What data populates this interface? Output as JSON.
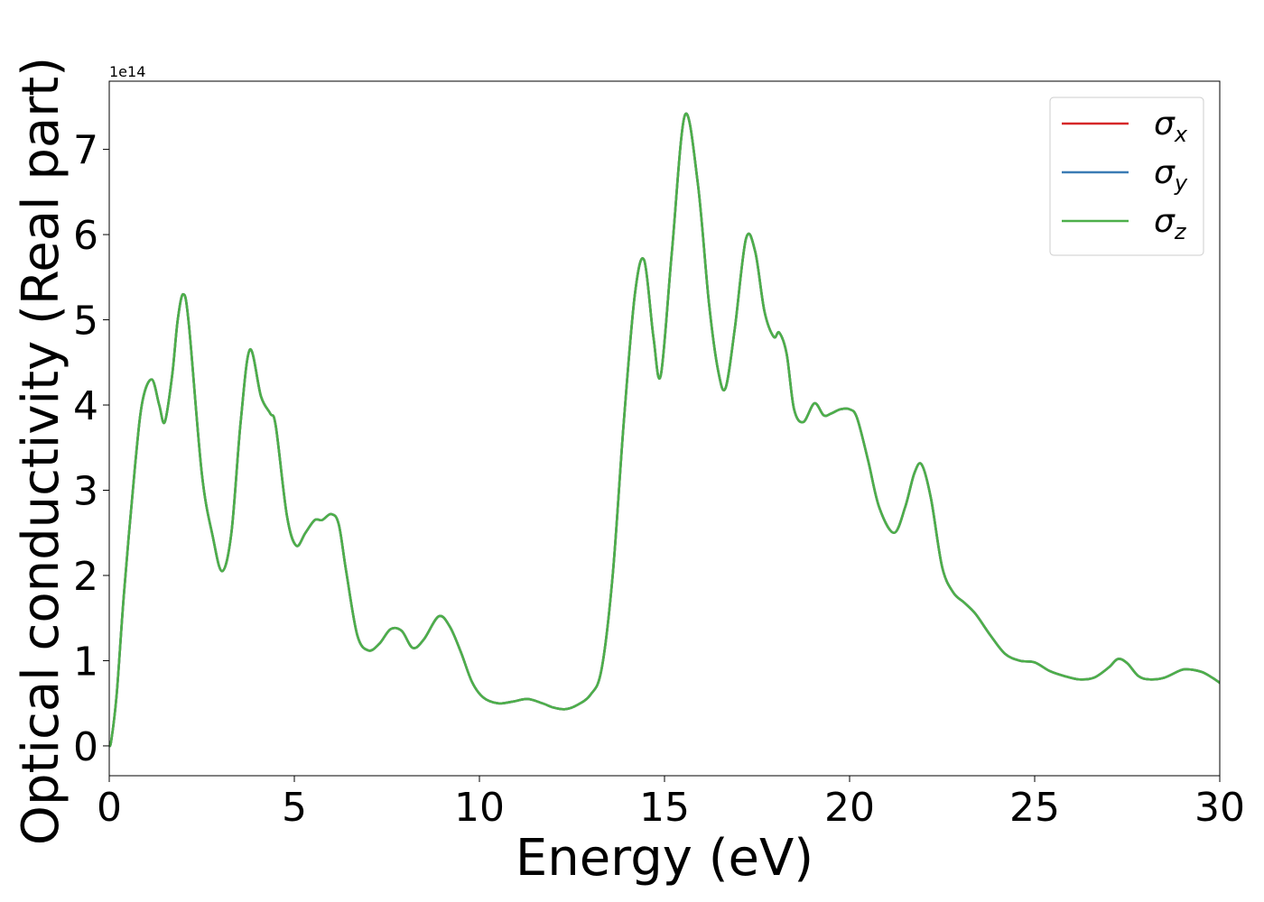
{
  "chart_data": {
    "type": "line",
    "xlabel": "Energy (eV)",
    "ylabel": "Optical conductivity (Real part)",
    "y_offset_text": "1e14",
    "xlim": [
      0,
      30
    ],
    "ylim": [
      -0.35,
      7.8
    ],
    "xticks": [
      0,
      5,
      10,
      15,
      20,
      25,
      30
    ],
    "xtick_labels": [
      "0",
      "5",
      "10",
      "15",
      "20",
      "25",
      "30"
    ],
    "yticks": [
      0,
      1,
      2,
      3,
      4,
      5,
      6,
      7
    ],
    "ytick_labels": [
      "0",
      "1",
      "2",
      "3",
      "4",
      "5",
      "6",
      "7"
    ],
    "grid": false,
    "legend_position": "top-right",
    "x": [
      0,
      0.05,
      0.2,
      0.4,
      0.7,
      0.9,
      1.15,
      1.35,
      1.5,
      1.7,
      1.85,
      2.0,
      2.15,
      2.5,
      2.8,
      3.05,
      3.3,
      3.55,
      3.8,
      4.1,
      4.35,
      4.5,
      4.8,
      5.05,
      5.3,
      5.55,
      5.75,
      6.0,
      6.2,
      6.4,
      6.7,
      7.0,
      7.3,
      7.6,
      7.9,
      8.2,
      8.5,
      8.9,
      9.2,
      9.5,
      9.8,
      10.1,
      10.5,
      10.9,
      11.3,
      11.7,
      12.0,
      12.3,
      12.6,
      13.0,
      13.3,
      13.6,
      13.9,
      14.2,
      14.45,
      14.7,
      14.9,
      15.2,
      15.55,
      15.9,
      16.2,
      16.45,
      16.65,
      16.9,
      17.2,
      17.45,
      17.7,
      17.95,
      18.1,
      18.3,
      18.5,
      18.75,
      19.05,
      19.3,
      19.5,
      19.75,
      20.0,
      20.2,
      20.5,
      20.8,
      21.2,
      21.5,
      21.75,
      21.95,
      22.2,
      22.5,
      22.8,
      23.1,
      23.4,
      23.8,
      24.2,
      24.6,
      25.0,
      25.4,
      25.8,
      26.2,
      26.6,
      27.0,
      27.25,
      27.5,
      27.8,
      28.1,
      28.5,
      28.9,
      29.1,
      29.5,
      29.8,
      30.0
    ],
    "series": [
      {
        "name": "σx",
        "color": "#d62728",
        "values": [
          0.02,
          0.05,
          0.6,
          1.8,
          3.3,
          4.05,
          4.3,
          4.0,
          3.8,
          4.35,
          5.0,
          5.3,
          4.95,
          3.2,
          2.45,
          2.05,
          2.5,
          3.8,
          4.65,
          4.1,
          3.9,
          3.75,
          2.7,
          2.35,
          2.5,
          2.65,
          2.65,
          2.72,
          2.6,
          2.05,
          1.3,
          1.12,
          1.2,
          1.37,
          1.35,
          1.15,
          1.25,
          1.52,
          1.4,
          1.1,
          0.75,
          0.57,
          0.5,
          0.52,
          0.55,
          0.5,
          0.45,
          0.43,
          0.47,
          0.6,
          0.9,
          2.0,
          3.8,
          5.3,
          5.7,
          4.8,
          4.35,
          5.8,
          7.4,
          6.6,
          5.2,
          4.4,
          4.2,
          4.9,
          5.95,
          5.8,
          5.1,
          4.8,
          4.85,
          4.6,
          3.95,
          3.8,
          4.02,
          3.88,
          3.9,
          3.95,
          3.95,
          3.85,
          3.35,
          2.8,
          2.5,
          2.8,
          3.2,
          3.3,
          2.9,
          2.1,
          1.8,
          1.68,
          1.55,
          1.3,
          1.08,
          1.0,
          0.98,
          0.88,
          0.82,
          0.78,
          0.8,
          0.92,
          1.02,
          0.97,
          0.82,
          0.78,
          0.8,
          0.88,
          0.9,
          0.87,
          0.8,
          0.74
        ]
      },
      {
        "name": "σy",
        "color": "#3b7cb4",
        "values": [
          0.02,
          0.05,
          0.6,
          1.8,
          3.3,
          4.05,
          4.3,
          4.0,
          3.8,
          4.35,
          5.0,
          5.3,
          4.95,
          3.2,
          2.45,
          2.05,
          2.5,
          3.8,
          4.65,
          4.1,
          3.9,
          3.75,
          2.7,
          2.35,
          2.5,
          2.65,
          2.65,
          2.72,
          2.6,
          2.05,
          1.3,
          1.12,
          1.2,
          1.37,
          1.35,
          1.15,
          1.25,
          1.52,
          1.4,
          1.1,
          0.75,
          0.57,
          0.5,
          0.52,
          0.55,
          0.5,
          0.45,
          0.43,
          0.47,
          0.6,
          0.9,
          2.0,
          3.8,
          5.3,
          5.7,
          4.8,
          4.35,
          5.8,
          7.4,
          6.6,
          5.2,
          4.4,
          4.2,
          4.9,
          5.95,
          5.8,
          5.1,
          4.8,
          4.85,
          4.6,
          3.95,
          3.8,
          4.02,
          3.88,
          3.9,
          3.95,
          3.95,
          3.85,
          3.35,
          2.8,
          2.5,
          2.8,
          3.2,
          3.3,
          2.9,
          2.1,
          1.8,
          1.68,
          1.55,
          1.3,
          1.08,
          1.0,
          0.98,
          0.88,
          0.82,
          0.78,
          0.8,
          0.92,
          1.02,
          0.97,
          0.82,
          0.78,
          0.8,
          0.88,
          0.9,
          0.87,
          0.8,
          0.74
        ]
      },
      {
        "name": "σz",
        "color": "#4daf4a",
        "values": [
          0.02,
          0.05,
          0.6,
          1.8,
          3.3,
          4.05,
          4.3,
          4.0,
          3.8,
          4.35,
          5.0,
          5.3,
          4.95,
          3.2,
          2.45,
          2.05,
          2.5,
          3.8,
          4.65,
          4.1,
          3.9,
          3.75,
          2.7,
          2.35,
          2.5,
          2.65,
          2.65,
          2.72,
          2.6,
          2.05,
          1.3,
          1.12,
          1.2,
          1.37,
          1.35,
          1.15,
          1.25,
          1.52,
          1.4,
          1.1,
          0.75,
          0.57,
          0.5,
          0.52,
          0.55,
          0.5,
          0.45,
          0.43,
          0.47,
          0.6,
          0.9,
          2.0,
          3.8,
          5.3,
          5.7,
          4.8,
          4.35,
          5.8,
          7.4,
          6.6,
          5.2,
          4.4,
          4.2,
          4.9,
          5.95,
          5.8,
          5.1,
          4.8,
          4.85,
          4.6,
          3.95,
          3.8,
          4.02,
          3.88,
          3.9,
          3.95,
          3.95,
          3.85,
          3.35,
          2.8,
          2.5,
          2.8,
          3.2,
          3.3,
          2.9,
          2.1,
          1.8,
          1.68,
          1.55,
          1.3,
          1.08,
          1.0,
          0.98,
          0.88,
          0.82,
          0.78,
          0.8,
          0.92,
          1.02,
          0.97,
          0.82,
          0.78,
          0.8,
          0.88,
          0.9,
          0.87,
          0.8,
          0.74
        ]
      }
    ],
    "legend": [
      {
        "symbol": "σ",
        "subscript": "x",
        "color": "#d62728"
      },
      {
        "symbol": "σ",
        "subscript": "y",
        "color": "#3b7cb4"
      },
      {
        "symbol": "σ",
        "subscript": "z",
        "color": "#4daf4a"
      }
    ]
  }
}
